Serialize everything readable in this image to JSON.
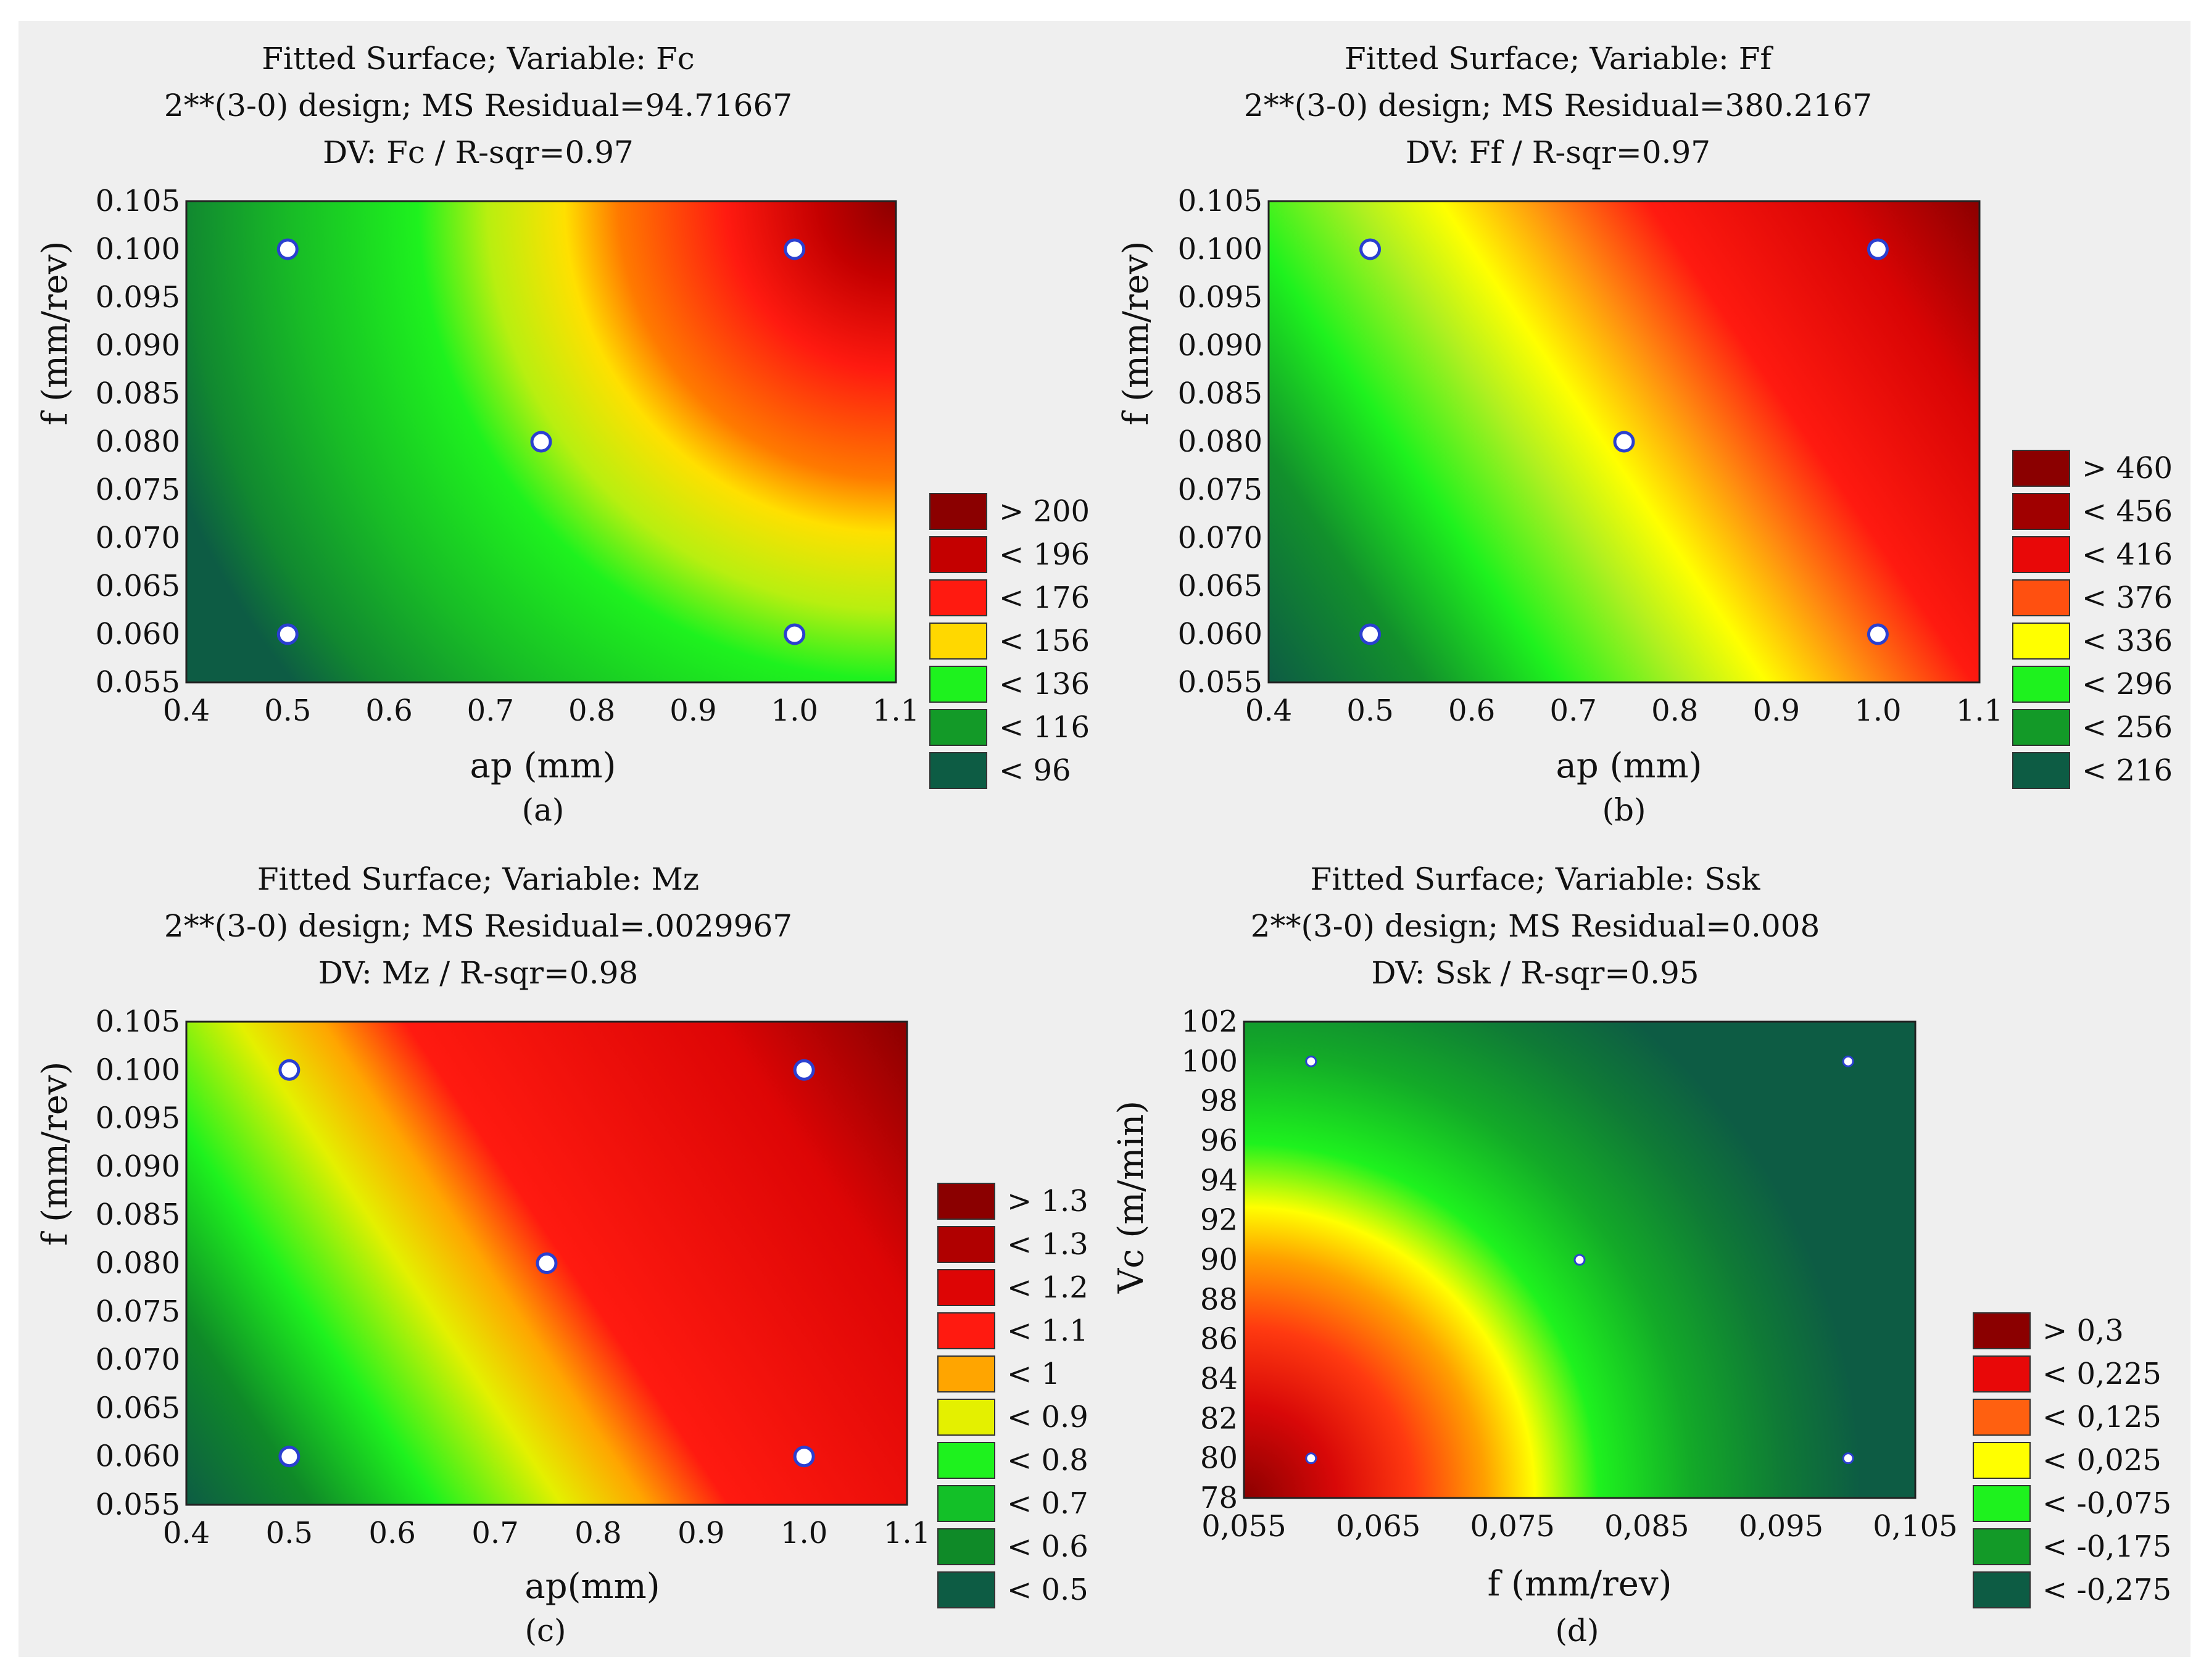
{
  "colors": {
    "background": "#efefef",
    "point_fill": "#ffffff",
    "point_stroke": "#2a3fd0"
  },
  "chart_data": [
    {
      "id": "a",
      "type": "heatmap",
      "title": [
        "Fitted Surface; Variable: Fc",
        "2**(3-0) design; MS Residual=94.71667",
        "DV: Fc / R-sqr=0.97"
      ],
      "xlabel": "ap (mm)",
      "ylabel": "f  (mm/rev)",
      "sublabel": "(a)",
      "xlim": [
        0.4,
        1.1
      ],
      "ylim": [
        0.055,
        0.105
      ],
      "xticks": [
        "0.4",
        "0.5",
        "0.6",
        "0.7",
        "0.8",
        "0.9",
        "1.0",
        "1.1"
      ],
      "yticks": [
        "0.055",
        "0.060",
        "0.065",
        "0.070",
        "0.075",
        "0.080",
        "0.085",
        "0.090",
        "0.095",
        "0.100",
        "0.105"
      ],
      "legend": [
        {
          "label": "> 200",
          "color": "#8b0000"
        },
        {
          "label": "< 196",
          "color": "#c40000"
        },
        {
          "label": "< 176",
          "color": "#ff1a10"
        },
        {
          "label": "< 156",
          "color": "#ffd800"
        },
        {
          "label": "< 136",
          "color": "#1ef21e"
        },
        {
          "label": "< 116",
          "color": "#139a28"
        },
        {
          "label": "< 96",
          "color": "#0d5c44"
        }
      ],
      "points": [
        {
          "x": 0.5,
          "y": 0.1
        },
        {
          "x": 1.0,
          "y": 0.1
        },
        {
          "x": 0.75,
          "y": 0.08
        },
        {
          "x": 0.5,
          "y": 0.06
        },
        {
          "x": 1.0,
          "y": 0.06
        }
      ]
    },
    {
      "id": "b",
      "type": "heatmap",
      "title": [
        "Fitted Surface; Variable: Ff",
        "2**(3-0) design; MS Residual=380.2167",
        "DV: Ff / R-sqr=0.97"
      ],
      "xlabel": "ap (mm)",
      "ylabel": "f  (mm/rev)",
      "sublabel": "(b)",
      "xlim": [
        0.4,
        1.1
      ],
      "ylim": [
        0.055,
        0.105
      ],
      "xticks": [
        "0.4",
        "0.5",
        "0.6",
        "0.7",
        "0.8",
        "0.9",
        "1.0",
        "1.1"
      ],
      "yticks": [
        "0.055",
        "0.060",
        "0.065",
        "0.070",
        "0.075",
        "0.080",
        "0.085",
        "0.090",
        "0.095",
        "0.100",
        "0.105"
      ],
      "legend": [
        {
          "label": "> 460",
          "color": "#8b0000"
        },
        {
          "label": "< 456",
          "color": "#a00000"
        },
        {
          "label": "< 416",
          "color": "#e80808"
        },
        {
          "label": "< 376",
          "color": "#ff5010"
        },
        {
          "label": "< 336",
          "color": "#ffff00"
        },
        {
          "label": "< 296",
          "color": "#1ef21e"
        },
        {
          "label": "< 256",
          "color": "#139a28"
        },
        {
          "label": "< 216",
          "color": "#0d5c44"
        }
      ],
      "points": [
        {
          "x": 0.5,
          "y": 0.1
        },
        {
          "x": 1.0,
          "y": 0.1
        },
        {
          "x": 0.75,
          "y": 0.08
        },
        {
          "x": 0.5,
          "y": 0.06
        },
        {
          "x": 1.0,
          "y": 0.06
        }
      ]
    },
    {
      "id": "c",
      "type": "heatmap",
      "title": [
        "Fitted Surface; Variable: Mz",
        "2**(3-0) design; MS Residual=.0029967",
        "DV: Mz / R-sqr=0.98"
      ],
      "xlabel": "ap(mm)",
      "ylabel": "f  (mm/rev)",
      "sublabel": "(c)",
      "xlim": [
        0.4,
        1.1
      ],
      "ylim": [
        0.055,
        0.105
      ],
      "xticks": [
        "0.4",
        "0.5",
        "0.6",
        "0.7",
        "0.8",
        "0.9",
        "1.0",
        "1.1"
      ],
      "yticks": [
        "0.055",
        "0.060",
        "0.065",
        "0.070",
        "0.075",
        "0.080",
        "0.085",
        "0.090",
        "0.095",
        "0.100",
        "0.105"
      ],
      "legend": [
        {
          "label": "> 1.3",
          "color": "#8b0000"
        },
        {
          "label": "< 1.3",
          "color": "#b00000"
        },
        {
          "label": "< 1.2",
          "color": "#dd0505"
        },
        {
          "label": "< 1.1",
          "color": "#ff1a10"
        },
        {
          "label": "< 1",
          "color": "#ffa500"
        },
        {
          "label": "< 0.9",
          "color": "#e4f000"
        },
        {
          "label": "< 0.8",
          "color": "#1ef21e"
        },
        {
          "label": "< 0.7",
          "color": "#13c028"
        },
        {
          "label": "< 0.6",
          "color": "#0f8a28"
        },
        {
          "label": "< 0.5",
          "color": "#0d5c44"
        }
      ],
      "points": [
        {
          "x": 0.5,
          "y": 0.1
        },
        {
          "x": 1.0,
          "y": 0.1
        },
        {
          "x": 0.75,
          "y": 0.08
        },
        {
          "x": 0.5,
          "y": 0.06
        },
        {
          "x": 1.0,
          "y": 0.06
        }
      ]
    },
    {
      "id": "d",
      "type": "heatmap",
      "title": [
        "Fitted Surface; Variable: Ssk",
        "2**(3-0) design; MS Residual=0.008",
        "DV: Ssk / R-sqr=0.95"
      ],
      "xlabel": "f   (mm/rev)",
      "ylabel": "Vc  (m/min)",
      "sublabel": "(d)",
      "xlim": [
        0.055,
        0.105
      ],
      "ylim": [
        78,
        102
      ],
      "xticks": [
        "0,055",
        "0,065",
        "0,075",
        "0,085",
        "0,095",
        "0,105"
      ],
      "yticks": [
        "78",
        "80",
        "82",
        "84",
        "86",
        "88",
        "90",
        "92",
        "94",
        "96",
        "98",
        "100",
        "102"
      ],
      "legend": [
        {
          "label": "> 0,3",
          "color": "#8b0000"
        },
        {
          "label": "< 0,225",
          "color": "#e80808"
        },
        {
          "label": "< 0,125",
          "color": "#ff6010"
        },
        {
          "label": "< 0,025",
          "color": "#ffff00"
        },
        {
          "label": "< -0,075",
          "color": "#1ef21e"
        },
        {
          "label": "< -0,175",
          "color": "#139a28"
        },
        {
          "label": "< -0,275",
          "color": "#0d5c44"
        }
      ],
      "points": [
        {
          "x": 0.06,
          "y": 100
        },
        {
          "x": 0.1,
          "y": 100
        },
        {
          "x": 0.08,
          "y": 90
        },
        {
          "x": 0.06,
          "y": 80
        },
        {
          "x": 0.1,
          "y": 80
        }
      ]
    }
  ]
}
